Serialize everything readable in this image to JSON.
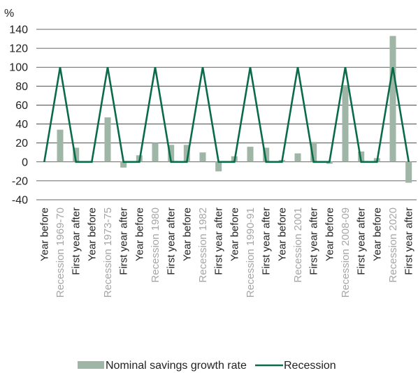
{
  "chart_data": {
    "type": "bar+line",
    "y_unit_label": "%",
    "ylim": [
      -40,
      140
    ],
    "y_ticks": [
      140,
      120,
      100,
      80,
      60,
      40,
      20,
      0,
      -20,
      -40
    ],
    "grid": true,
    "legend_position": "bottom",
    "categories": [
      "Year before",
      "Recession 1969-70",
      "First year after",
      "Year before",
      "Recession 1973-75",
      "First year after",
      "Year before",
      "Recession 1980",
      "First year after",
      "Year before",
      "Recession 1982",
      "First year after",
      "Year before",
      "Recession 1990-91",
      "First year after",
      "Year before",
      "Recession 2001",
      "First year after",
      "Year before",
      "Recession 2008-09",
      "First year after",
      "Year before",
      "Recession 2020",
      "First year after"
    ],
    "highlighted_categories": [
      1,
      4,
      7,
      10,
      13,
      16,
      19,
      22
    ],
    "series": [
      {
        "name": "Nominal savings growth rate",
        "type": "bar",
        "color": "#9fb6a6",
        "values": [
          0,
          34,
          15,
          0,
          47,
          -6,
          7,
          20,
          18,
          18,
          10,
          -10,
          6,
          16,
          15,
          2,
          9,
          21,
          -2,
          81,
          11,
          4,
          133,
          -22
        ]
      },
      {
        "name": "Recession",
        "type": "line",
        "color": "#0a6b4a",
        "values": [
          0,
          100,
          0,
          0,
          100,
          0,
          0,
          100,
          0,
          0,
          100,
          0,
          0,
          100,
          0,
          0,
          100,
          0,
          0,
          100,
          0,
          0,
          100,
          0
        ]
      }
    ],
    "colors": {
      "axis_text": "#222222",
      "highlight_text": "#a6a6a6",
      "grid": "#333333"
    }
  }
}
